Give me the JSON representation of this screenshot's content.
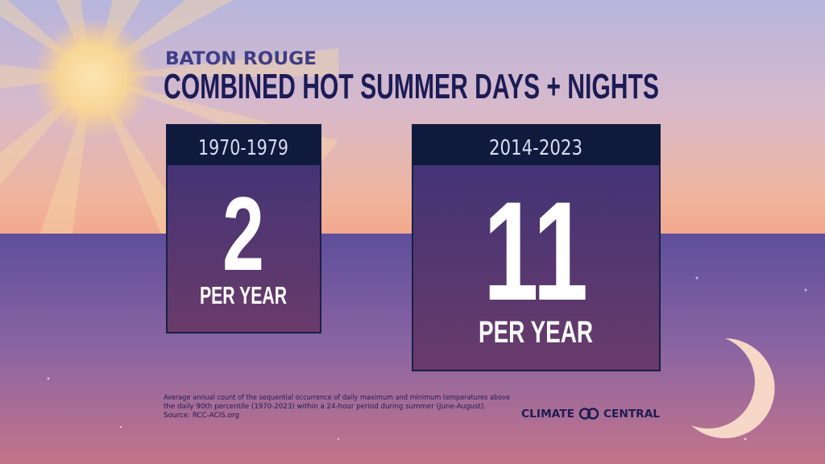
{
  "header": {
    "kicker": "BATON ROUGE",
    "title": "COMBINED HOT SUMMER DAYS + NIGHTS"
  },
  "panels": [
    {
      "period": "1970-1979",
      "value": 2,
      "unit": "PER YEAR"
    },
    {
      "period": "2014-2023",
      "value": 11,
      "unit": "PER YEAR"
    }
  ],
  "footnote": {
    "lines": [
      "Average annual count of the sequential occurrence of daily maximum and minimum temperatures above",
      "the daily 90th percentile (1970-2023) within a 24-hour period during summer (June-August).",
      "Source: RCC-ACIS.org"
    ]
  },
  "logo": {
    "left": "CLIMATE",
    "right": "CENTRAL"
  }
}
